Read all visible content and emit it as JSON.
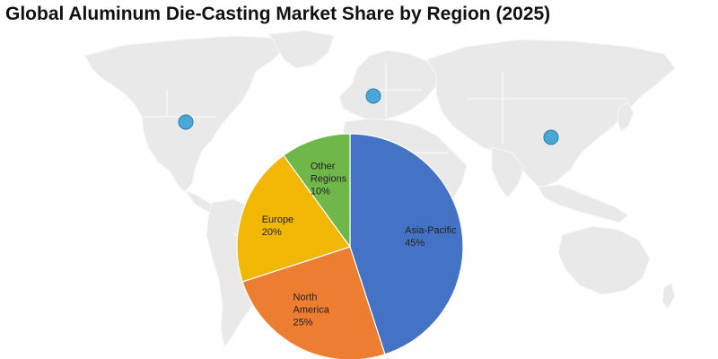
{
  "title": "Global Aluminum Die-Casting Market Share by Region (2025)",
  "chart_data": {
    "type": "pie",
    "title": "Global Aluminum Die-Casting Market Share by Region (2025)",
    "unit": "%",
    "slices": [
      {
        "label": [
          "Asia-Pacific"
        ],
        "value": 45,
        "value_label": "45%",
        "color": "#4472c4"
      },
      {
        "label": [
          "North",
          "America"
        ],
        "value": 25,
        "value_label": "25%",
        "color": "#ed7d31"
      },
      {
        "label": [
          "Europe"
        ],
        "value": 20,
        "value_label": "20%",
        "color": "#f2b705"
      },
      {
        "label": [
          "Other",
          "Regions"
        ],
        "value": 10,
        "value_label": "10%",
        "color": "#70b74a"
      }
    ],
    "start": "12 o'clock",
    "direction": "clockwise",
    "background": "world map",
    "map_markers": [
      "north-america",
      "europe",
      "china"
    ],
    "marker_color": "#4aa8d8"
  }
}
